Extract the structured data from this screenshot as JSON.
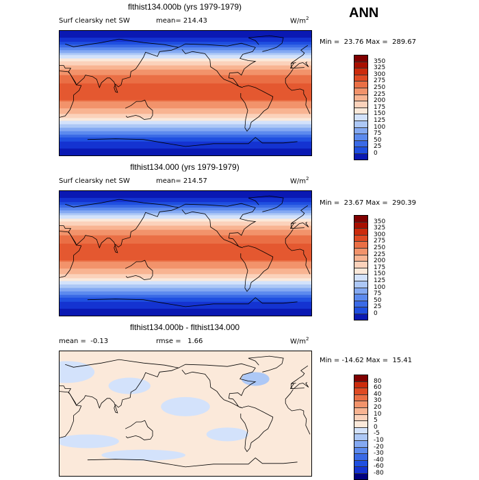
{
  "season": "ANN",
  "units_base": "W/m",
  "units_exp": "2",
  "palette": [
    "#00007f",
    "#0a19b3",
    "#1433d1",
    "#1f4fe0",
    "#3a6ae6",
    "#5c8aee",
    "#84a9f2",
    "#adc8f6",
    "#d3e2fb",
    "#fbe9da",
    "#fbd2bb",
    "#f8b492",
    "#f2936b",
    "#ea6f45",
    "#df4a23",
    "#cc2b0c",
    "#a80f00",
    "#800000"
  ],
  "panels": [
    {
      "title": "flthist134.000b (yrs 1979-1979)",
      "variable": "Surf clearsky net SW",
      "mean": "mean= 214.43",
      "min": "23.76",
      "max": "289.67",
      "kind": "abs",
      "levels": [
        "350",
        "325",
        "300",
        "275",
        "250",
        "225",
        "200",
        "175",
        "150",
        "125",
        "100",
        "75",
        "50",
        "25",
        "0"
      ]
    },
    {
      "title": "flthist134.000 (yrs 1979-1979)",
      "variable": "Surf clearsky net SW",
      "mean": "mean= 214.57",
      "min": "23.67",
      "max": "290.39",
      "kind": "abs",
      "levels": [
        "350",
        "325",
        "300",
        "275",
        "250",
        "225",
        "200",
        "175",
        "150",
        "125",
        "100",
        "75",
        "50",
        "25",
        "0"
      ]
    },
    {
      "title": "flthist134.000b - flthist134.000",
      "mean": "mean =  -0.13",
      "rmse": "rmse =   1.66",
      "min": "-14.62",
      "max": "15.41",
      "kind": "diff",
      "levels": [
        "80",
        "60",
        "40",
        "30",
        "20",
        "10",
        "5",
        "0",
        "-5",
        "-10",
        "-20",
        "-30",
        "-40",
        "-60",
        "-80"
      ]
    }
  ]
}
